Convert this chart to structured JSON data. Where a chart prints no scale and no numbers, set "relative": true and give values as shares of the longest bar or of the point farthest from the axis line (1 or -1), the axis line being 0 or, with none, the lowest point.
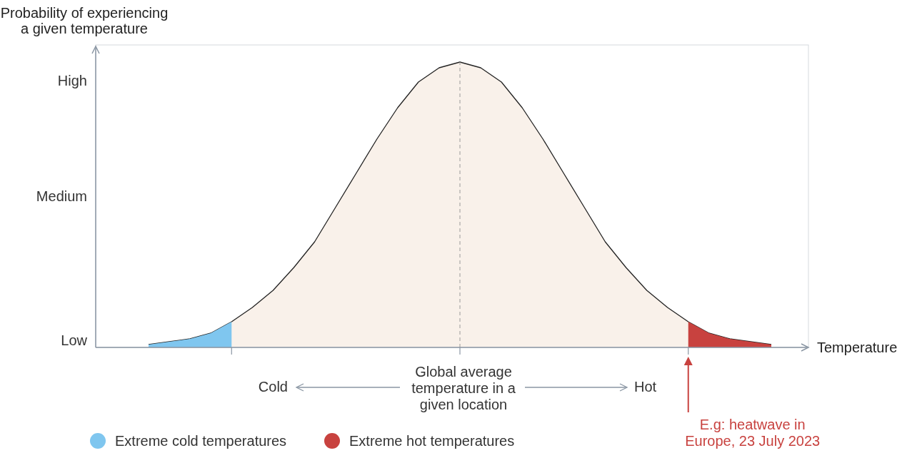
{
  "chart_data": {
    "type": "area",
    "ylabel": "Probability of experiencing a given temperature",
    "xlabel": "Temperature",
    "categories": [
      null,
      null,
      null,
      null,
      null,
      null,
      null,
      null,
      null,
      null,
      null,
      null,
      null,
      null,
      null,
      null,
      null,
      null,
      null,
      null,
      null,
      null,
      null,
      null,
      null,
      null,
      null,
      null,
      null,
      null,
      null
    ],
    "series": [
      {
        "color": "#f9f1ea",
        "values": [
          0.01,
          0.02,
          0.03,
          0.05,
          0.09,
          0.14,
          0.2,
          0.28,
          0.37,
          0.49,
          0.61,
          0.73,
          0.84,
          0.93,
          0.98,
          1,
          0.98,
          0.93,
          0.84,
          0.73,
          0.61,
          0.49,
          0.37,
          0.28,
          0.2,
          0.14,
          0.09,
          0.05,
          0.03,
          0.02,
          0.01
        ]
      },
      {
        "name": "Extreme cold temperatures",
        "color": "#7fc6ef",
        "values": [
          0.01,
          0.02,
          0.03,
          0.05,
          0.09,
          null,
          null,
          null,
          null,
          null,
          null,
          null,
          null,
          null,
          null,
          null,
          null,
          null,
          null,
          null,
          null,
          null,
          null,
          null,
          null,
          null,
          null,
          null,
          null,
          null,
          null
        ]
      },
      {
        "name": "Extreme hot temperatures",
        "color": "#c8423f",
        "values": [
          null,
          null,
          null,
          null,
          null,
          null,
          null,
          null,
          null,
          null,
          null,
          null,
          null,
          null,
          null,
          null,
          null,
          null,
          null,
          null,
          null,
          null,
          null,
          null,
          null,
          null,
          0.09,
          0.05,
          0.03,
          0.02,
          0.01
        ]
      }
    ],
    "relative": true,
    "legend": "bottom",
    "annotations": [
      "Cold",
      "Global average temperature in a given location",
      "Hot",
      "E.g: heatwave in Europe, 23 July 2023",
      "High",
      "Medium",
      "Low"
    ]
  }
}
